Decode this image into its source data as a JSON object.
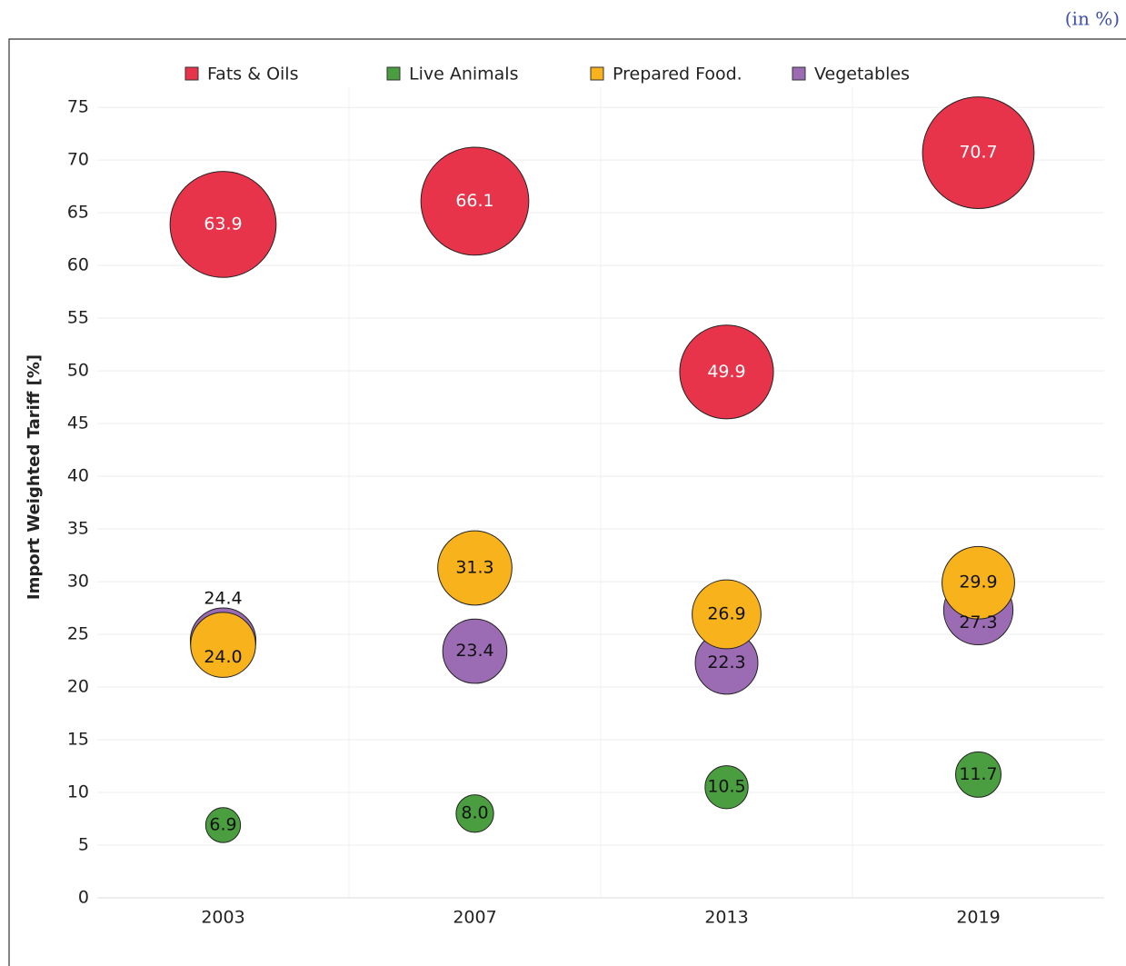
{
  "chart_data": {
    "type": "bubble",
    "unit_note": "(in %)",
    "y_label": "Import Weighted Tariff [%]",
    "categories": [
      "2003",
      "2007",
      "2013",
      "2019"
    ],
    "series": [
      {
        "name": "Fats & Oils",
        "color": "#e8344a",
        "values": [
          63.9,
          66.1,
          49.9,
          70.7
        ],
        "value_labels": [
          "63.9",
          "66.1",
          "49.9",
          "70.7"
        ]
      },
      {
        "name": "Live Animals",
        "color": "#4a9e3f",
        "values": [
          6.9,
          8.0,
          10.5,
          11.7
        ],
        "value_labels": [
          "6.9",
          "8.0",
          "10.5",
          "11.7"
        ]
      },
      {
        "name": "Prepared Food.",
        "color": "#f7b21c",
        "values": [
          24.0,
          31.3,
          26.9,
          29.9
        ],
        "value_labels": [
          "24.0",
          "31.3",
          "26.9",
          "29.9"
        ]
      },
      {
        "name": "Vegetables",
        "color": "#9b6bb3",
        "values": [
          24.4,
          23.4,
          22.3,
          27.3
        ],
        "value_labels": [
          "24.4",
          "23.4",
          "22.3",
          "27.3"
        ]
      }
    ],
    "ylim": [
      0,
      77
    ],
    "yticks": [
      0,
      5,
      10,
      15,
      20,
      25,
      30,
      35,
      40,
      45,
      50,
      55,
      60,
      65,
      70,
      75
    ],
    "grid": true
  }
}
